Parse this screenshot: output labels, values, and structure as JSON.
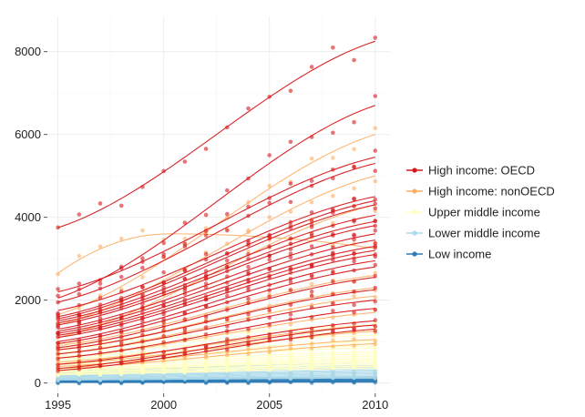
{
  "chart_data": {
    "type": "scatter",
    "title": "",
    "xlabel": "",
    "ylabel": "",
    "xlim": [
      1994.5,
      2010.7
    ],
    "ylim": [
      -250,
      8850
    ],
    "x_ticks": [
      1995,
      2000,
      2005,
      2010
    ],
    "y_ticks": [
      0,
      2000,
      4000,
      6000,
      8000
    ],
    "grid": true,
    "legend_position": "right",
    "legend": [
      {
        "label": "High income: OECD",
        "color": "#d7191c"
      },
      {
        "label": "High income: nonOECD",
        "color": "#fdae61"
      },
      {
        "label": "Upper middle income",
        "color": "#ffffbf"
      },
      {
        "label": "Lower middle income",
        "color": "#abd9e9"
      },
      {
        "label": "Low income",
        "color": "#2c7bb6"
      }
    ],
    "groups": [
      {
        "name": "High income: OECD",
        "color": "#d7191c",
        "trend": "smooth",
        "series": [
          {
            "start": 3750,
            "end": 8250
          },
          {
            "start": 2050,
            "end": 6700
          },
          {
            "start": 2200,
            "end": 5450
          },
          {
            "start": 1950,
            "end": 5300
          },
          {
            "start": 1750,
            "end": 4500
          },
          {
            "start": 1600,
            "end": 4400
          },
          {
            "start": 1550,
            "end": 4300
          },
          {
            "start": 1500,
            "end": 4050
          },
          {
            "start": 1450,
            "end": 3900
          },
          {
            "start": 1400,
            "end": 3800
          },
          {
            "start": 1300,
            "end": 3600
          },
          {
            "start": 1250,
            "end": 3450
          },
          {
            "start": 1200,
            "end": 3300
          },
          {
            "start": 1150,
            "end": 3200
          },
          {
            "start": 1100,
            "end": 3100
          },
          {
            "start": 1000,
            "end": 2950
          },
          {
            "start": 950,
            "end": 2800
          },
          {
            "start": 850,
            "end": 2550
          },
          {
            "start": 800,
            "end": 2250
          },
          {
            "start": 700,
            "end": 2000
          },
          {
            "start": 600,
            "end": 1800
          },
          {
            "start": 450,
            "end": 1500
          },
          {
            "start": 350,
            "end": 1400
          },
          {
            "start": 300,
            "end": 1300
          }
        ]
      },
      {
        "name": "High income: nonOECD",
        "color": "#fdae61",
        "trend": "smooth",
        "series": [
          {
            "start": 2650,
            "end": 3250,
            "peak": 3600
          },
          {
            "start": 1650,
            "end": 6000
          },
          {
            "start": 1400,
            "end": 5000
          },
          {
            "start": 1100,
            "end": 4300
          },
          {
            "start": 900,
            "end": 2600
          },
          {
            "start": 800,
            "end": 2300
          },
          {
            "start": 700,
            "end": 2100
          },
          {
            "start": 600,
            "end": 1700
          },
          {
            "start": 500,
            "end": 1400
          },
          {
            "start": 450,
            "end": 1250
          },
          {
            "start": 400,
            "end": 1050
          },
          {
            "start": 350,
            "end": 950
          }
        ]
      },
      {
        "name": "Upper middle income",
        "color": "#ffffbf",
        "trend": "smooth",
        "series": [
          {
            "start": 950,
            "end": 1400
          },
          {
            "start": 850,
            "end": 1250
          },
          {
            "start": 750,
            "end": 1150
          },
          {
            "start": 650,
            "end": 1000
          },
          {
            "start": 600,
            "end": 900
          },
          {
            "start": 550,
            "end": 850
          },
          {
            "start": 500,
            "end": 750
          },
          {
            "start": 450,
            "end": 700
          },
          {
            "start": 400,
            "end": 650
          },
          {
            "start": 350,
            "end": 600
          },
          {
            "start": 320,
            "end": 560
          },
          {
            "start": 300,
            "end": 520
          },
          {
            "start": 270,
            "end": 480
          },
          {
            "start": 250,
            "end": 440
          },
          {
            "start": 220,
            "end": 400
          },
          {
            "start": 200,
            "end": 360
          }
        ]
      },
      {
        "name": "Lower middle income",
        "color": "#abd9e9",
        "trend": "smooth",
        "series": [
          {
            "start": 300,
            "end": 480
          },
          {
            "start": 260,
            "end": 430
          },
          {
            "start": 230,
            "end": 390
          },
          {
            "start": 200,
            "end": 350
          },
          {
            "start": 180,
            "end": 310
          },
          {
            "start": 160,
            "end": 280
          },
          {
            "start": 140,
            "end": 250
          },
          {
            "start": 120,
            "end": 220
          },
          {
            "start": 100,
            "end": 190
          },
          {
            "start": 90,
            "end": 160
          },
          {
            "start": 80,
            "end": 140
          },
          {
            "start": 70,
            "end": 120
          }
        ]
      },
      {
        "name": "Low income",
        "color": "#2c7bb6",
        "trend": "smooth",
        "series": [
          {
            "start": 90,
            "end": 150
          },
          {
            "start": 70,
            "end": 120
          },
          {
            "start": 55,
            "end": 95
          },
          {
            "start": 45,
            "end": 75
          },
          {
            "start": 35,
            "end": 60
          },
          {
            "start": 25,
            "end": 45
          },
          {
            "start": 15,
            "end": 30
          },
          {
            "start": 10,
            "end": 20
          }
        ]
      }
    ]
  }
}
